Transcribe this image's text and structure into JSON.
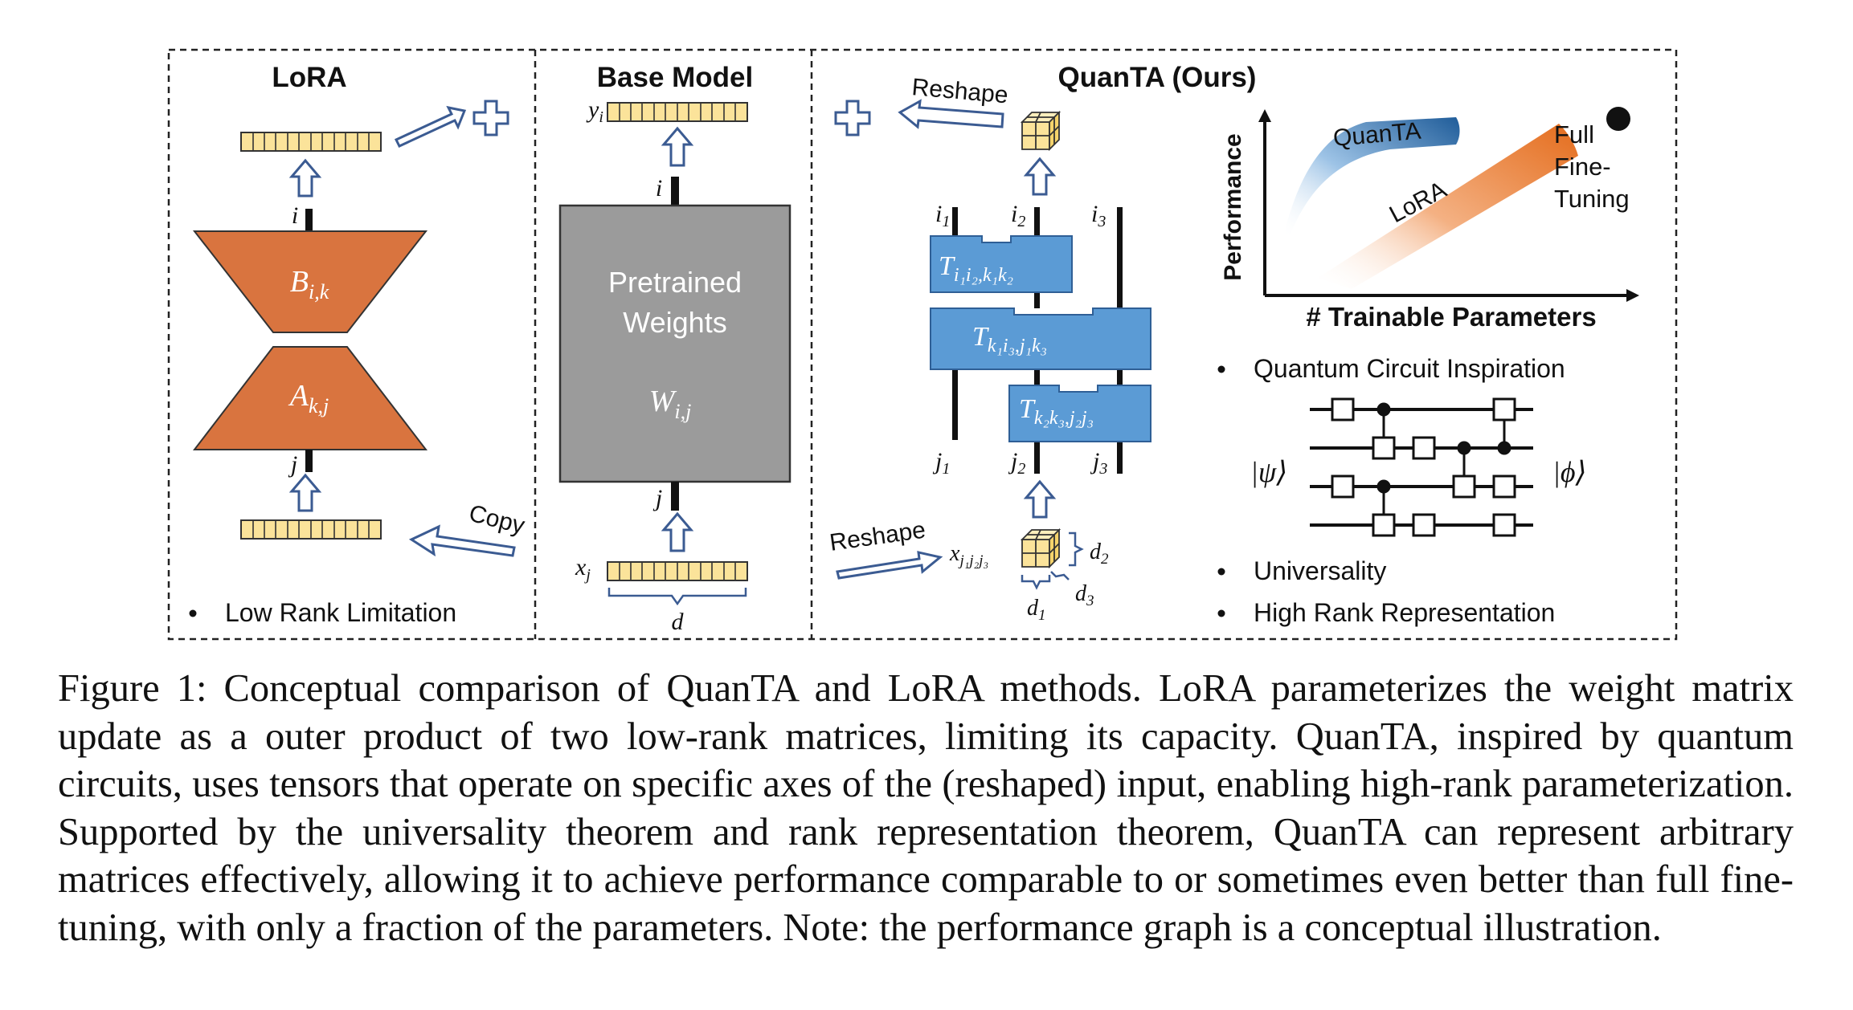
{
  "lora": {
    "title": "LoRA",
    "matrix_b": {
      "base": "B",
      "sub": "i,k"
    },
    "matrix_a": {
      "base": "A",
      "sub": "k,j"
    },
    "index_out": "i",
    "index_in": "j",
    "copy_label": "Copy",
    "bullet": "Low Rank Limitation"
  },
  "base_model": {
    "title": "Base Model",
    "output_var": {
      "base": "y",
      "sub": "i"
    },
    "input_var": {
      "base": "x",
      "sub": "j"
    },
    "index_out": "i",
    "index_in": "j",
    "weights_line1": "Pretrained",
    "weights_line2": "Weights",
    "weights_var": {
      "base": "W",
      "sub": "i,j"
    },
    "dim_label": "d"
  },
  "quanta": {
    "title": "QuanTA (Ours)",
    "reshape_top": "Reshape",
    "reshape_bottom": "Reshape",
    "top_indices": [
      {
        "base": "i",
        "sub": "1"
      },
      {
        "base": "i",
        "sub": "2"
      },
      {
        "base": "i",
        "sub": "3"
      }
    ],
    "bottom_indices": [
      {
        "base": "j",
        "sub": "1"
      },
      {
        "base": "j",
        "sub": "2"
      },
      {
        "base": "j",
        "sub": "3"
      }
    ],
    "tensors": [
      {
        "base": "T",
        "sub": "i₁i₂,k₁k₂"
      },
      {
        "base": "T",
        "sub": "k₁i₃,j₁k₃"
      },
      {
        "base": "T",
        "sub": "k₂k₃,j₂j₃"
      }
    ],
    "input_var": {
      "base": "x",
      "sub": "j₁j₂j₃"
    },
    "cube_dims": [
      {
        "base": "d",
        "sub": "1"
      },
      {
        "base": "d",
        "sub": "2"
      },
      {
        "base": "d",
        "sub": "3"
      }
    ]
  },
  "performance_graph": {
    "ylabel": "Performance",
    "xlabel": "# Trainable Parameters",
    "quanta_label": "QuanTA",
    "lora_label": "LoRA",
    "full_ft_lines": [
      "Full",
      "Fine-",
      "Tuning"
    ]
  },
  "circuit": {
    "bullet_inspiration": "Quantum Circuit Inspiration",
    "ket_in": "|ψ⟩",
    "ket_out": "|ϕ⟩",
    "bullet_universality": "Universality",
    "bullet_high_rank": "High Rank Representation"
  },
  "colors": {
    "lora_orange": "#d9743f",
    "vector_yellow": "#fbe39a",
    "tensor_blue": "#5b9bd5",
    "arrow_blue": "#3b5b92",
    "weights_gray": "#9b9b9b",
    "quanta_band": "#2e75b6",
    "lora_band": "#ed7d31"
  },
  "caption": "Figure 1: Conceptual comparison of QuanTA and LoRA methods. LoRA parameterizes the weight matrix update as a outer product of two low-rank matrices, limiting its capacity. QuanTA, inspired by quantum circuits, uses tensors that operate on specific axes of the (reshaped) input, enabling high-rank parameterization. Supported by the universality theorem and rank representation theorem, QuanTA can represent arbitrary matrices effectively, allowing it to achieve performance comparable to or sometimes even better than full fine-tuning, with only a fraction of the parameters. Note: the performance graph is a conceptual illustration."
}
